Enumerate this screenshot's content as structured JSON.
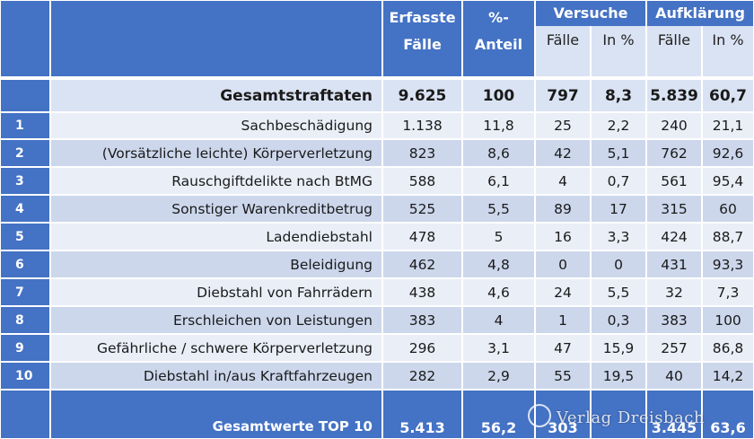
{
  "header": {
    "col_erfasste": [
      "Erfasste",
      "Fälle"
    ],
    "col_anteil": [
      "%-",
      "Anteil"
    ],
    "group_versuche": "Versuche",
    "group_aufklaerung": "Aufklärung",
    "sub_faelle": "Fälle",
    "sub_inprozent": "In %"
  },
  "total_row": {
    "label": "Gesamtstraftaten",
    "values": [
      "9.625",
      "100",
      "797",
      "8,3",
      "5.839",
      "60,7"
    ]
  },
  "rows": [
    {
      "rank": "1",
      "label": "Sachbeschädigung",
      "values": [
        "1.138",
        "11,8",
        "25",
        "2,2",
        "240",
        "21,1"
      ]
    },
    {
      "rank": "2",
      "label": "(Vorsätzliche leichte) Körperverletzung",
      "values": [
        "823",
        "8,6",
        "42",
        "5,1",
        "762",
        "92,6"
      ]
    },
    {
      "rank": "3",
      "label": "Rauschgiftdelikte nach BtMG",
      "values": [
        "588",
        "6,1",
        "4",
        "0,7",
        "561",
        "95,4"
      ]
    },
    {
      "rank": "4",
      "label": "Sonstiger Warenkreditbetrug",
      "values": [
        "525",
        "5,5",
        "89",
        "17",
        "315",
        "60"
      ]
    },
    {
      "rank": "5",
      "label": "Ladendiebstahl",
      "values": [
        "478",
        "5",
        "16",
        "3,3",
        "424",
        "88,7"
      ]
    },
    {
      "rank": "6",
      "label": "Beleidigung",
      "values": [
        "462",
        "4,8",
        "0",
        "0",
        "431",
        "93,3"
      ]
    },
    {
      "rank": "7",
      "label": "Diebstahl von Fahrrädern",
      "values": [
        "438",
        "4,6",
        "24",
        "5,5",
        "32",
        "7,3"
      ]
    },
    {
      "rank": "8",
      "label": "Erschleichen von Leistungen",
      "values": [
        "383",
        "4",
        "1",
        "0,3",
        "383",
        "100"
      ]
    },
    {
      "rank": "9",
      "label": "Gefährliche / schwere Körperverletzung",
      "values": [
        "296",
        "3,1",
        "47",
        "15,9",
        "257",
        "86,8"
      ]
    },
    {
      "rank": "10",
      "label": "Diebstahl in/aus Kraftfahrzeugen",
      "values": [
        "282",
        "2,9",
        "55",
        "19,5",
        "40",
        "14,2"
      ]
    }
  ],
  "footer_row": {
    "label": "Gesamtwerte TOP 10",
    "values": [
      "5.413",
      "56,2",
      "303",
      "",
      "3.445",
      "63,6"
    ]
  },
  "watermark": "Verlag Dreisbach",
  "colors": {
    "header_blue": "#4472c4",
    "row_light": "#e9eef7",
    "row_mid": "#ccd7ec",
    "sub_header": "#dae3f3"
  }
}
